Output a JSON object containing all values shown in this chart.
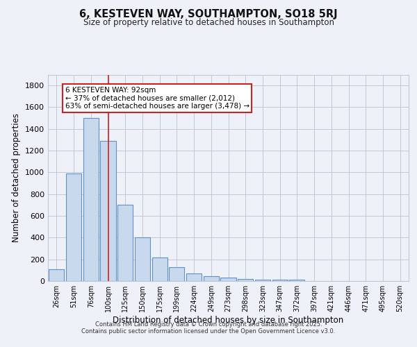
{
  "title": "6, KESTEVEN WAY, SOUTHAMPTON, SO18 5RJ",
  "subtitle": "Size of property relative to detached houses in Southampton",
  "xlabel": "Distribution of detached houses by size in Southampton",
  "ylabel": "Number of detached properties",
  "categories": [
    "26sqm",
    "51sqm",
    "76sqm",
    "100sqm",
    "125sqm",
    "150sqm",
    "175sqm",
    "199sqm",
    "224sqm",
    "249sqm",
    "273sqm",
    "298sqm",
    "323sqm",
    "347sqm",
    "372sqm",
    "397sqm",
    "421sqm",
    "446sqm",
    "471sqm",
    "495sqm",
    "520sqm"
  ],
  "values": [
    110,
    990,
    1500,
    1290,
    700,
    400,
    215,
    130,
    70,
    45,
    30,
    20,
    15,
    12,
    10,
    0,
    0,
    0,
    0,
    0,
    0
  ],
  "bar_color": "#c8d8ed",
  "bar_edge_color": "#6090c8",
  "highlight_index": 3,
  "highlight_line_color": "#cc2222",
  "annotation_text_line1": "6 KESTEVEN WAY: 92sqm",
  "annotation_text_line2": "← 37% of detached houses are smaller (2,012)",
  "annotation_text_line3": "63% of semi-detached houses are larger (3,478) →",
  "annotation_box_color": "#ffffff",
  "annotation_box_edge_color": "#cc2222",
  "ylim": [
    0,
    1900
  ],
  "yticks": [
    0,
    200,
    400,
    600,
    800,
    1000,
    1200,
    1400,
    1600,
    1800
  ],
  "background_color": "#eef2f8",
  "plot_bg_color": "#eef2f8",
  "grid_color": "#c0c8d8",
  "footer_line1": "Contains HM Land Registry data © Crown copyright and database right 2025.",
  "footer_line2": "Contains public sector information licensed under the Open Government Licence v3.0."
}
